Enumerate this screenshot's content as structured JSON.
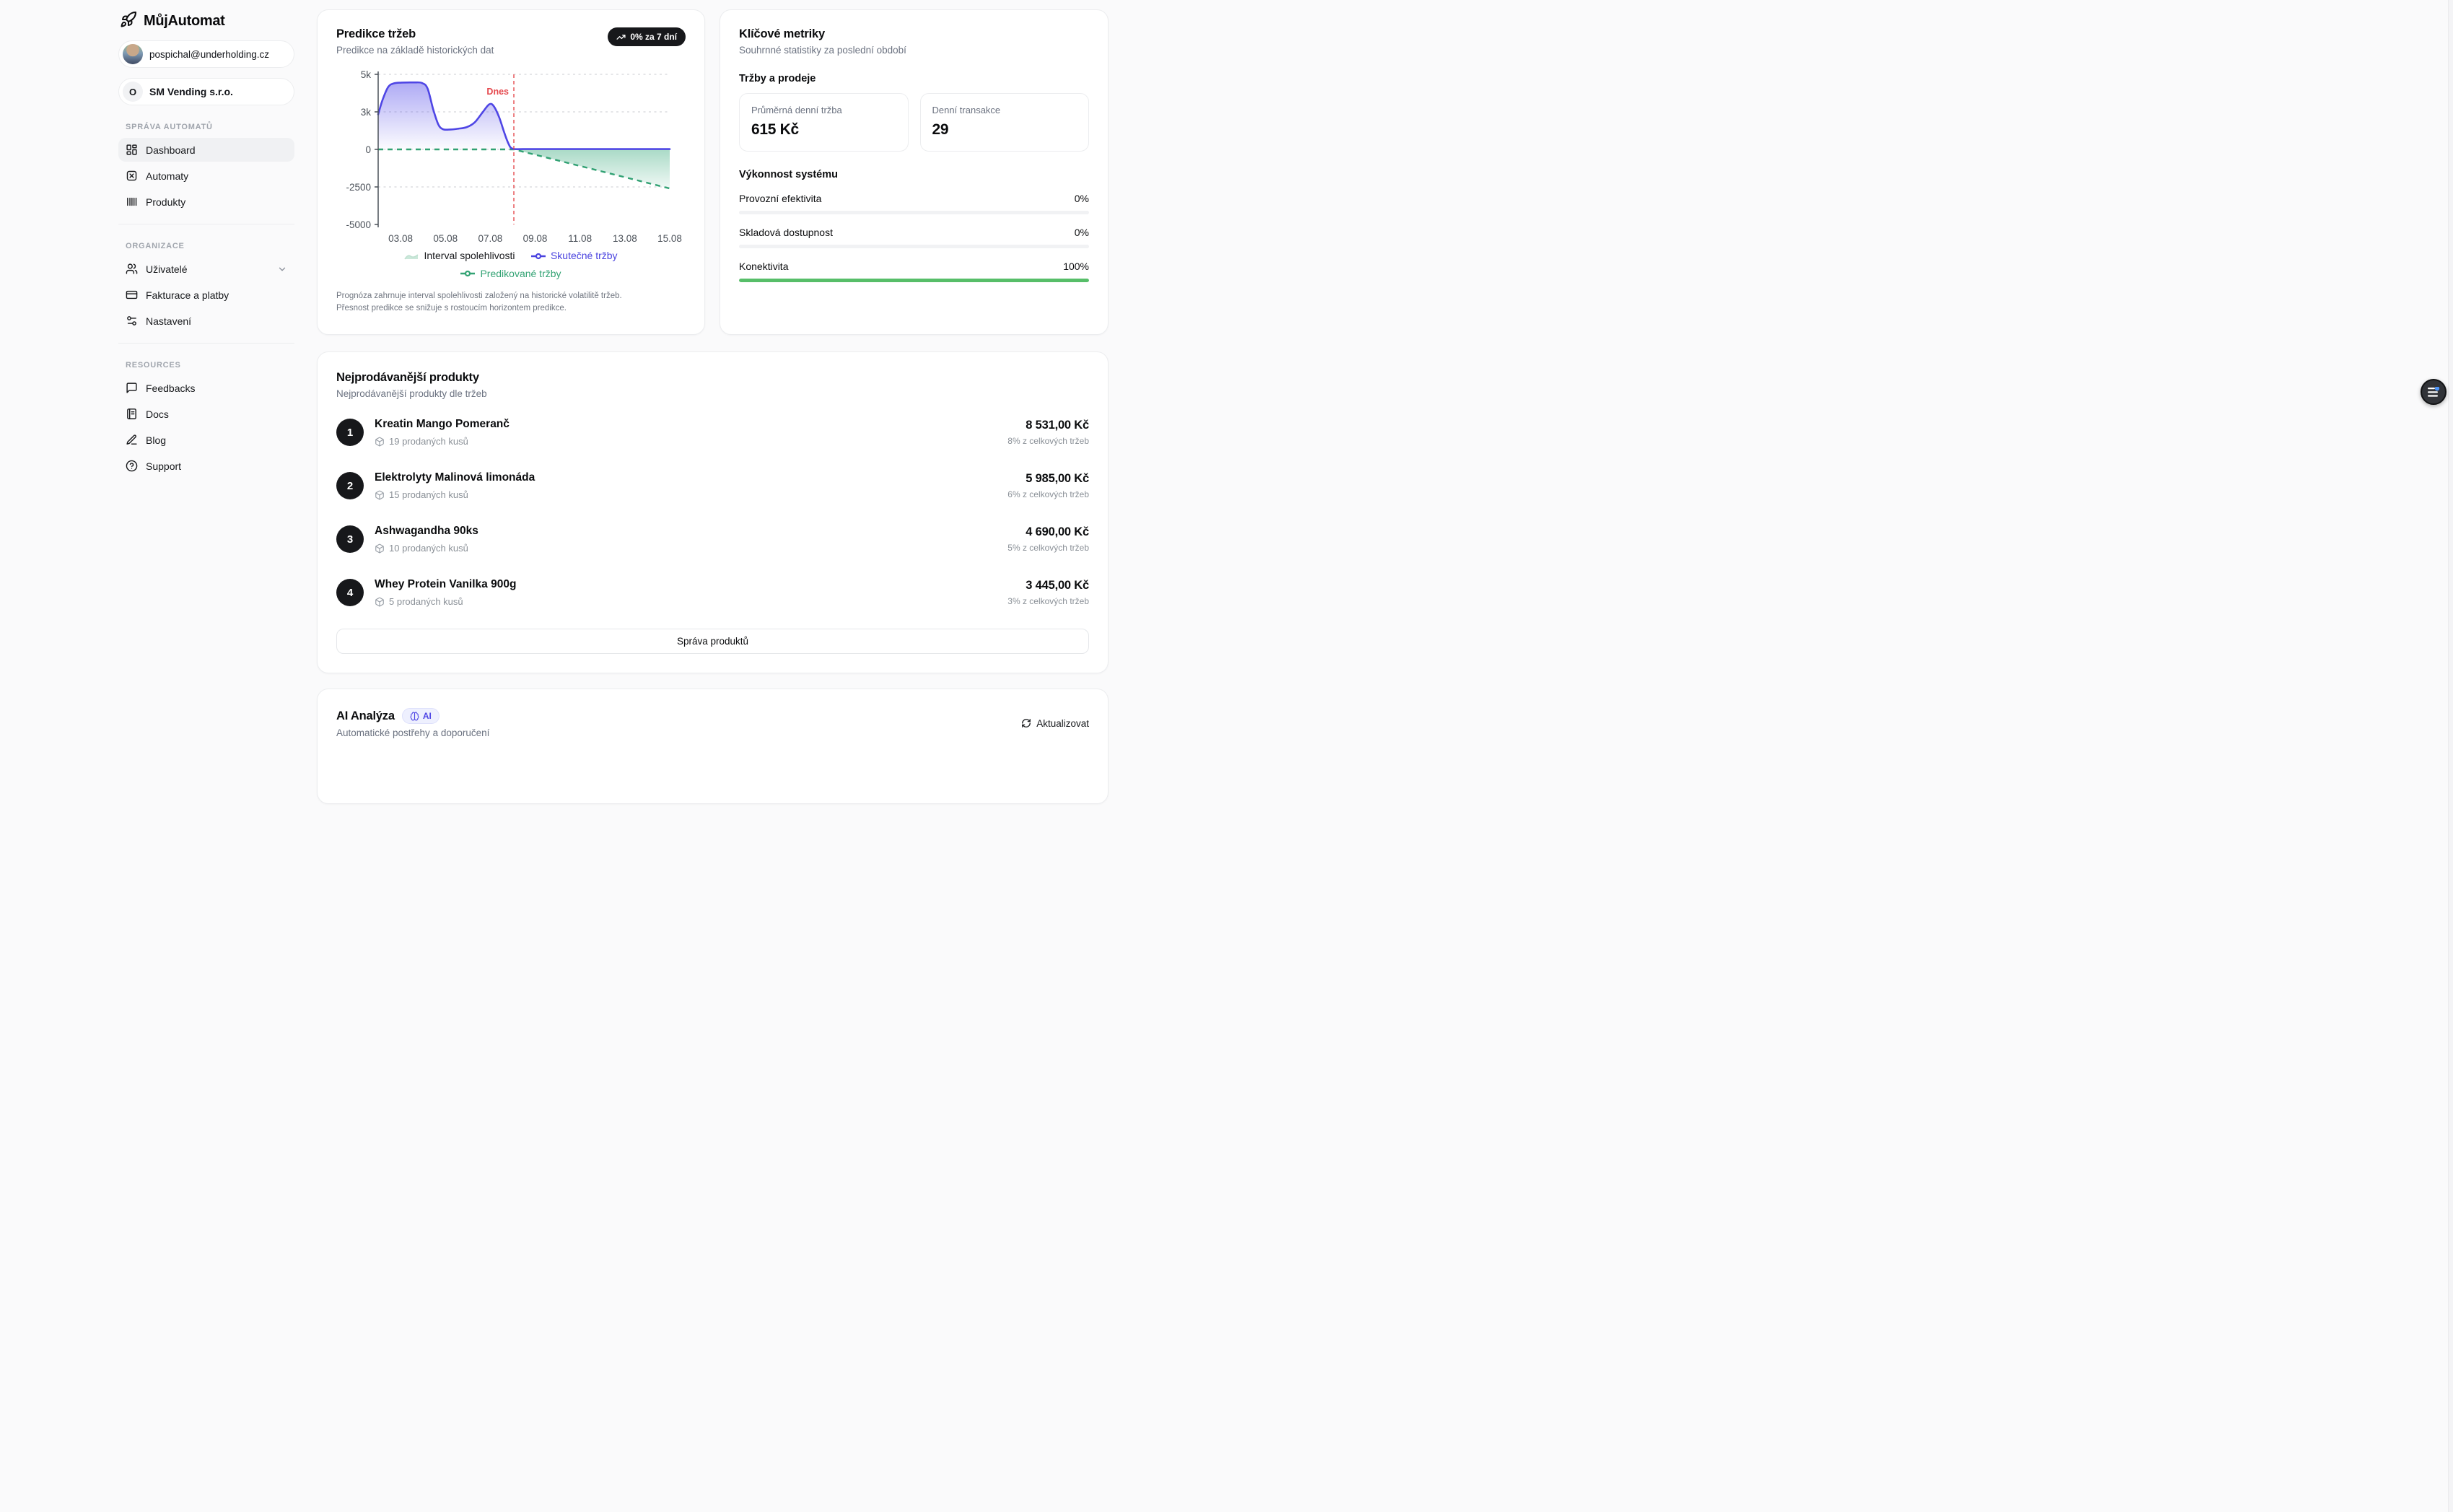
{
  "app": {
    "name": "MůjAutomat"
  },
  "sidebar": {
    "user_email": "pospichal@underholding.cz",
    "org": {
      "initial": "O",
      "name": "SM Vending s.r.o."
    },
    "sections": [
      {
        "label": "SPRÁVA AUTOMATŮ",
        "items": [
          {
            "label": "Dashboard",
            "icon": "layout-dashboard-icon",
            "active": true
          },
          {
            "label": "Automaty",
            "icon": "vending-machine-icon"
          },
          {
            "label": "Produkty",
            "icon": "barcode-icon"
          }
        ]
      },
      {
        "label": "ORGANIZACE",
        "items": [
          {
            "label": "Uživatelé",
            "icon": "users-icon",
            "chevron": "chevron-down"
          },
          {
            "label": "Fakturace a platby",
            "icon": "credit-card-icon"
          },
          {
            "label": "Nastavení",
            "icon": "sliders-icon"
          }
        ]
      },
      {
        "label": "RESOURCES",
        "items": [
          {
            "label": "Feedbacks",
            "icon": "message-square-icon"
          },
          {
            "label": "Docs",
            "icon": "book-icon"
          },
          {
            "label": "Blog",
            "icon": "pencil-icon"
          },
          {
            "label": "Support",
            "icon": "help-circle-icon"
          }
        ]
      }
    ]
  },
  "prediction_card": {
    "title": "Predikce tržeb",
    "subtitle": "Predikce na základě historických dat",
    "badge": "0% za 7 dní",
    "badge_icon": "trending-up-icon",
    "footnote_line1": "Prognóza zahrnuje interval spolehlivosti založený na historické volatilitě tržeb.",
    "footnote_line2": "Přesnost predikce se snižuje s rostoucím horizontem predikce.",
    "legend": {
      "band": "Interval spolehlivosti",
      "actual": "Skutečné tržby",
      "predicted": "Predikované tržby"
    }
  },
  "chart_data": {
    "type": "line",
    "title": "Predikce tržeb",
    "today_label": "Dnes",
    "today_day": 8.05,
    "x_domain_days": [
      2,
      15
    ],
    "x_tick_days": [
      3,
      5,
      7,
      9,
      11,
      13,
      15
    ],
    "x_tick_labels": [
      "03.08",
      "05.08",
      "07.08",
      "09.08",
      "11.08",
      "13.08",
      "15.08"
    ],
    "y_ticks": [
      {
        "label": "5k",
        "value": 5000
      },
      {
        "label": "3k",
        "value": 3000
      },
      {
        "label": "0",
        "value": 0
      },
      {
        "label": "-2500",
        "value": -2500
      },
      {
        "label": "-5000",
        "value": -5000
      }
    ],
    "grid": "dashed-horizontal",
    "legend_position": "bottom",
    "series": [
      {
        "name": "Skutečné tržby",
        "color": "#4F46E5",
        "style": "solid-area",
        "points": [
          [
            2,
            2800
          ],
          [
            2.2,
            3650
          ],
          [
            2.45,
            4330
          ],
          [
            2.7,
            4520
          ],
          [
            3.05,
            4560
          ],
          [
            3.6,
            4570
          ],
          [
            3.95,
            4540
          ],
          [
            4.2,
            4250
          ],
          [
            4.45,
            3150
          ],
          [
            4.68,
            2000
          ],
          [
            4.88,
            1620
          ],
          [
            5.15,
            1580
          ],
          [
            5.55,
            1650
          ],
          [
            5.95,
            1780
          ],
          [
            6.3,
            2150
          ],
          [
            6.65,
            2950
          ],
          [
            6.95,
            3400
          ],
          [
            7.15,
            3310
          ],
          [
            7.4,
            2550
          ],
          [
            7.62,
            1350
          ],
          [
            7.82,
            420
          ],
          [
            8.0,
            50
          ],
          [
            8.5,
            25
          ],
          [
            10,
            25
          ],
          [
            12.5,
            25
          ],
          [
            15,
            25
          ]
        ]
      },
      {
        "name": "Predikované tržby",
        "color": "#31A173",
        "style": "dashed",
        "points": [
          [
            2,
            0
          ],
          [
            8.05,
            0
          ],
          [
            15,
            -2600
          ]
        ]
      },
      {
        "name": "Interval spolehlivosti",
        "color": "#34A779",
        "style": "band",
        "points": [
          [
            8.05,
            0
          ],
          [
            15,
            0
          ],
          [
            15,
            -2600
          ]
        ]
      }
    ]
  },
  "metrics_card": {
    "title": "Klíčové metriky",
    "subtitle": "Souhrnné statistiky za poslední období",
    "sales_heading": "Tržby a prodeje",
    "stats": [
      {
        "label": "Průměrná denní tržba",
        "value": "615 Kč"
      },
      {
        "label": "Denní transakce",
        "value": "29"
      }
    ],
    "performance_heading": "Výkonnost systému",
    "bars": [
      {
        "label": "Provozní efektivita",
        "value": "0%",
        "percent": 0,
        "color": "#57BE69"
      },
      {
        "label": "Skladová dostupnost",
        "value": "0%",
        "percent": 0,
        "color": "#57BE69"
      },
      {
        "label": "Konektivita",
        "value": "100%",
        "percent": 100,
        "color": "#57BE69"
      }
    ]
  },
  "products_card": {
    "title": "Nejprodávanější produkty",
    "subtitle": "Nejprodávanější produkty dle tržeb",
    "items": [
      {
        "rank": "1",
        "name": "Kreatin Mango Pomeranč",
        "sold": "19 prodaných kusů",
        "price": "8 531,00 Kč",
        "share": "8% z celkových tržeb"
      },
      {
        "rank": "2",
        "name": "Elektrolyty Malinová limonáda",
        "sold": "15 prodaných kusů",
        "price": "5 985,00 Kč",
        "share": "6% z celkových tržeb"
      },
      {
        "rank": "3",
        "name": "Ashwagandha 90ks",
        "sold": "10 prodaných kusů",
        "price": "4 690,00 Kč",
        "share": "5% z celkových tržeb"
      },
      {
        "rank": "4",
        "name": "Whey Protein Vanilka 900g",
        "sold": "5 prodaných kusů",
        "price": "3 445,00 Kč",
        "share": "3% z celkových tržeb"
      }
    ],
    "button": "Správa produktů"
  },
  "ai_card": {
    "title": "AI Analýza",
    "badge": "AI",
    "badge_icon": "brain-icon",
    "subtitle": "Automatické postřehy a doporučení",
    "refresh": "Aktualizovat"
  },
  "colors": {
    "accent_indigo": "#4F46E5",
    "chart_green": "#31A173",
    "progress_green": "#57BE69",
    "danger_red": "#E5484D",
    "badge_dark": "#17181B",
    "page_bg": "#FAFAFB"
  }
}
